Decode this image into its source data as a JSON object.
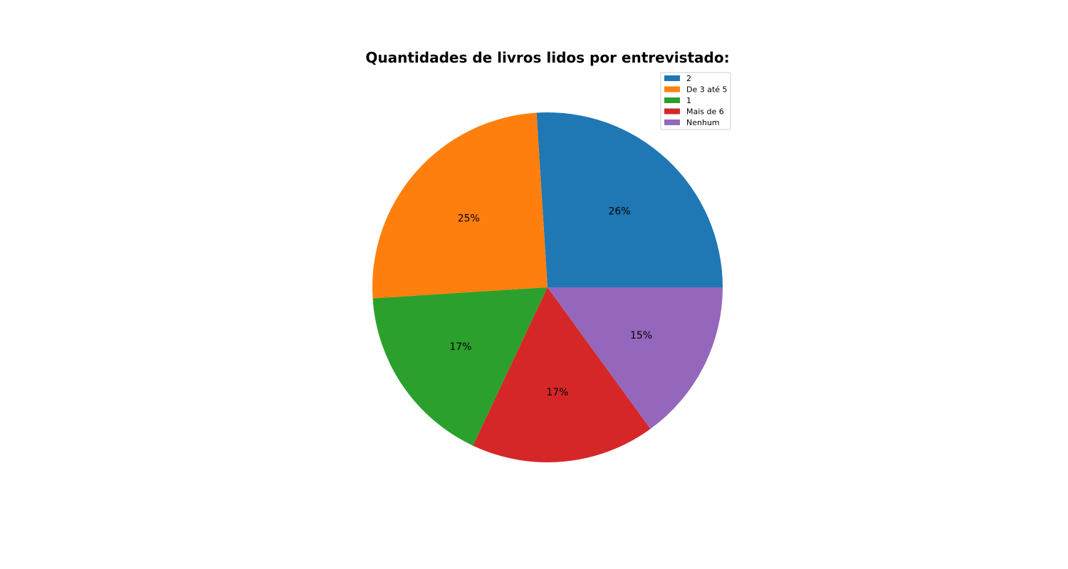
{
  "chart_data": {
    "type": "pie",
    "title": "Quantidades de livros lidos por entrevistado:",
    "categories": [
      "2",
      "De 3 até 5",
      "1",
      "Mais de 6",
      "Nenhum"
    ],
    "values": [
      26,
      25,
      17,
      17,
      15
    ],
    "labels": [
      "26%",
      "25%",
      "17%",
      "17%",
      "15%"
    ],
    "colors": [
      "#1f77b4",
      "#ff7f0e",
      "#2ca02c",
      "#d62728",
      "#9467bd"
    ],
    "start_angle_deg": 0,
    "direction": "counterclockwise",
    "legend": {
      "placement": "upper-right",
      "entries": [
        "2",
        "De 3 até 5",
        "1",
        "Mais de 6",
        "Nenhum"
      ]
    }
  }
}
